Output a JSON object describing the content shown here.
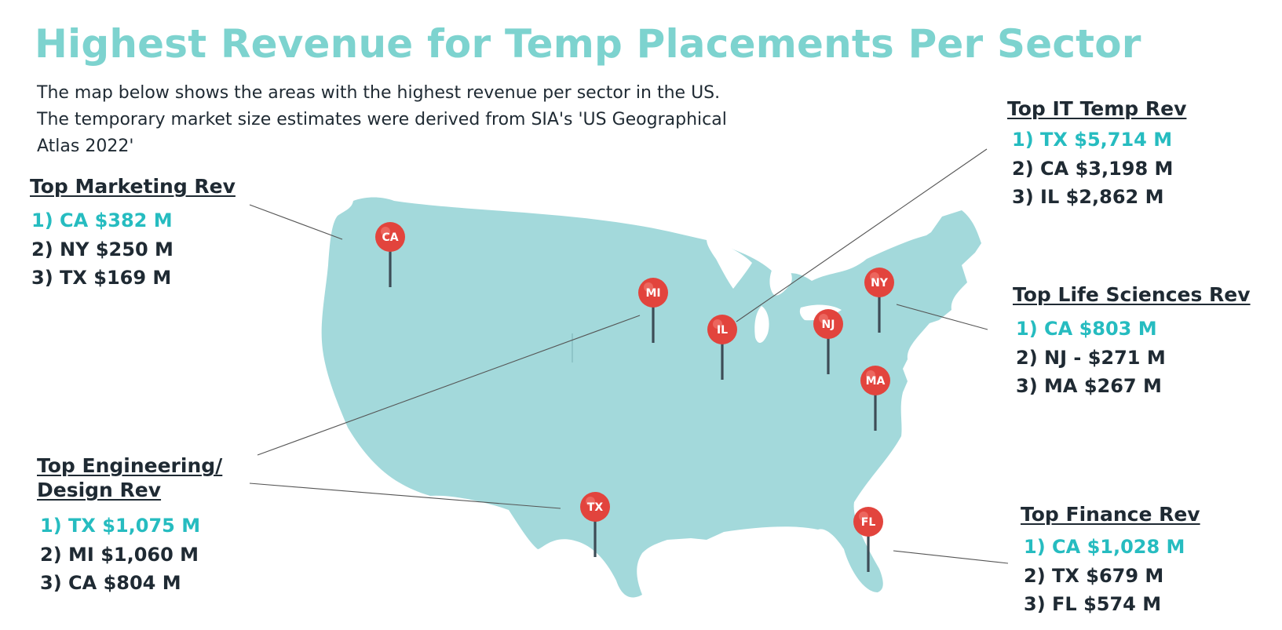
{
  "title": "Highest Revenue for Temp Placements Per Sector",
  "intro": "The map below shows the areas with the highest revenue per sector in the US. The temporary market size estimates were derived from SIA's 'US Geographical Atlas 2022'",
  "colors": {
    "title": "#7dd3cf",
    "map_fill": "#a3d9db",
    "pin": "#e2443d",
    "pin_stem": "#3d4c56",
    "top_rank": "#26bcc0",
    "text": "#1f2a33"
  },
  "map": {
    "region": "United States",
    "pins": [
      {
        "label": "CA",
        "icon": "map-pin-icon"
      },
      {
        "label": "MI",
        "icon": "map-pin-icon"
      },
      {
        "label": "IL",
        "icon": "map-pin-icon"
      },
      {
        "label": "NJ",
        "icon": "map-pin-icon"
      },
      {
        "label": "NY",
        "icon": "map-pin-icon"
      },
      {
        "label": "MA",
        "icon": "map-pin-icon"
      },
      {
        "label": "TX",
        "icon": "map-pin-icon"
      },
      {
        "label": "FL",
        "icon": "map-pin-icon"
      }
    ]
  },
  "sectors": {
    "marketing": {
      "title": "Top Marketing Rev",
      "ranks": [
        "1) CA $382 M",
        "2) NY $250 M",
        "3) TX $169 M"
      ]
    },
    "it": {
      "title": "Top IT Temp Rev",
      "ranks": [
        "1) TX $5,714 M",
        "2) CA $3,198 M",
        "3) IL $2,862 M"
      ]
    },
    "life_sciences": {
      "title": "Top Life Sciences Rev",
      "ranks": [
        "1) CA $803 M",
        "2) NJ - $271 M",
        "3) MA $267 M"
      ]
    },
    "engineering": {
      "title_line1": "Top Engineering/",
      "title_line2": "Design Rev",
      "ranks": [
        "1) TX $1,075 M",
        "2) MI $1,060 M",
        "3) CA $804 M"
      ]
    },
    "finance": {
      "title": "Top Finance Rev",
      "ranks": [
        "1) CA $1,028 M",
        "2) TX $679 M",
        "3) FL $574 M"
      ]
    }
  }
}
